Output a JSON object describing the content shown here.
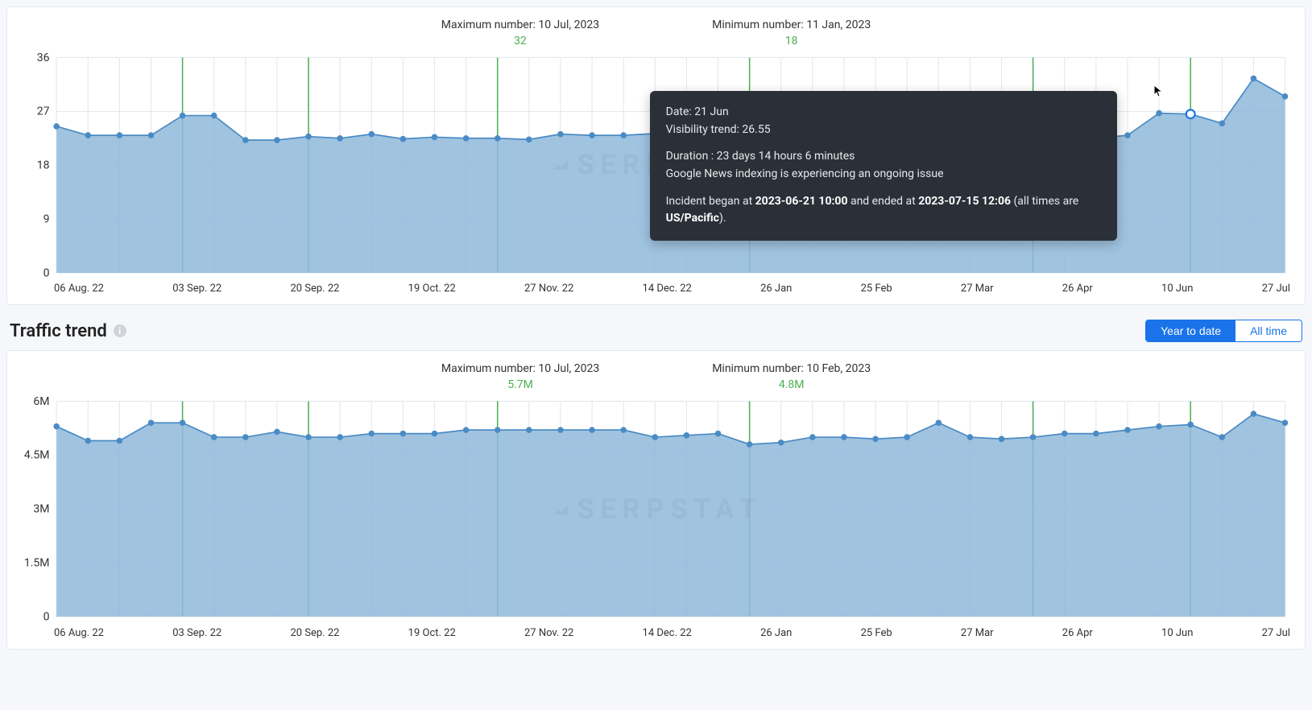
{
  "colors": {
    "area_fill": "#8fb8db",
    "area_fill_opacity": 0.85,
    "line_stroke": "#4a8bc5",
    "marker_fill": "#4a8bc5",
    "grid": "#e3e8ee",
    "green_vline": "#4caf50",
    "axis_text": "#333333",
    "stat_green": "#4caf50",
    "tooltip_bg": "#2b3038",
    "tooltip_fg": "#e6e8eb",
    "primary_blue": "#1a73e8",
    "highlight_marker_fill": "#ffffff",
    "highlight_marker_stroke": "#1a73e8"
  },
  "watermark": "SERPSTAT",
  "chart1": {
    "type": "area",
    "max_label": "Maximum number: 10 Jul, 2023",
    "max_value": "32",
    "min_label": "Minimum number: 11 Jan, 2023",
    "min_value": "18",
    "y_ticks": [
      0,
      9,
      18,
      27,
      36
    ],
    "ylim": [
      0,
      36
    ],
    "x_labels": [
      "06 Aug. 22",
      "03 Sep. 22",
      "20 Sep. 22",
      "19 Oct. 22",
      "27 Nov. 22",
      "14 Dec. 22",
      "26 Jan",
      "25 Feb",
      "27 Mar",
      "26 Apr",
      "10 Jun",
      "27 Jul"
    ],
    "green_vlines_idx": [
      4,
      8,
      14,
      22,
      31,
      36
    ],
    "highlight_idx": 36,
    "values": [
      24.5,
      23,
      23,
      23,
      26.3,
      26.3,
      22.2,
      22.2,
      22.8,
      22.5,
      23.2,
      22.4,
      22.7,
      22.5,
      22.5,
      22.3,
      23.2,
      23,
      23,
      23.3,
      22.2,
      22.2,
      23,
      18,
      18,
      19.5,
      22,
      22,
      22,
      22,
      22,
      22,
      22.5,
      22.5,
      23,
      26.7,
      26.55,
      25,
      32.5,
      29.5
    ],
    "tooltip": {
      "date_line": "Date: 21 Jun",
      "value_line": "Visibility trend: 26.55",
      "duration_line": "Duration : 23 days 14 hours 6 minutes",
      "issue_line": "Google News indexing is experiencing an ongoing issue",
      "incident_prefix": "Incident began at ",
      "incident_start": "2023-06-21 10:00",
      "incident_mid": " and ended at ",
      "incident_end": "2023-07-15 12:06",
      "incident_suffix1": " (all times are ",
      "incident_tz": "US/Pacific",
      "incident_suffix2": ")."
    },
    "marker_radius": 3.5,
    "line_width": 1.6
  },
  "section2": {
    "title": "Traffic trend",
    "toggle_active": "Year to date",
    "toggle_other": "All time"
  },
  "chart2": {
    "type": "area",
    "max_label": "Maximum number: 10 Jul, 2023",
    "max_value": "5.7M",
    "min_label": "Minimum number: 10 Feb, 2023",
    "min_value": "4.8M",
    "y_ticks_labels": [
      "0",
      "1.5M",
      "3M",
      "4.5M",
      "6M"
    ],
    "y_ticks_values": [
      0,
      1.5,
      3,
      4.5,
      6
    ],
    "ylim": [
      0,
      6
    ],
    "x_labels": [
      "06 Aug. 22",
      "03 Sep. 22",
      "20 Sep. 22",
      "19 Oct. 22",
      "27 Nov. 22",
      "14 Dec. 22",
      "26 Jan",
      "25 Feb",
      "27 Mar",
      "26 Apr",
      "10 Jun",
      "27 Jul"
    ],
    "green_vlines_idx": [
      4,
      8,
      14,
      22,
      31,
      36
    ],
    "values": [
      5.3,
      4.9,
      4.9,
      5.4,
      5.4,
      5.0,
      5.0,
      5.15,
      5.0,
      5.0,
      5.1,
      5.1,
      5.1,
      5.2,
      5.2,
      5.2,
      5.2,
      5.2,
      5.2,
      5.0,
      5.05,
      5.1,
      4.8,
      4.85,
      5.0,
      5.0,
      4.95,
      5.0,
      5.4,
      5.0,
      4.95,
      5.0,
      5.1,
      5.1,
      5.2,
      5.3,
      5.35,
      5.0,
      5.65,
      5.4
    ],
    "marker_radius": 3.5,
    "line_width": 1.6
  }
}
